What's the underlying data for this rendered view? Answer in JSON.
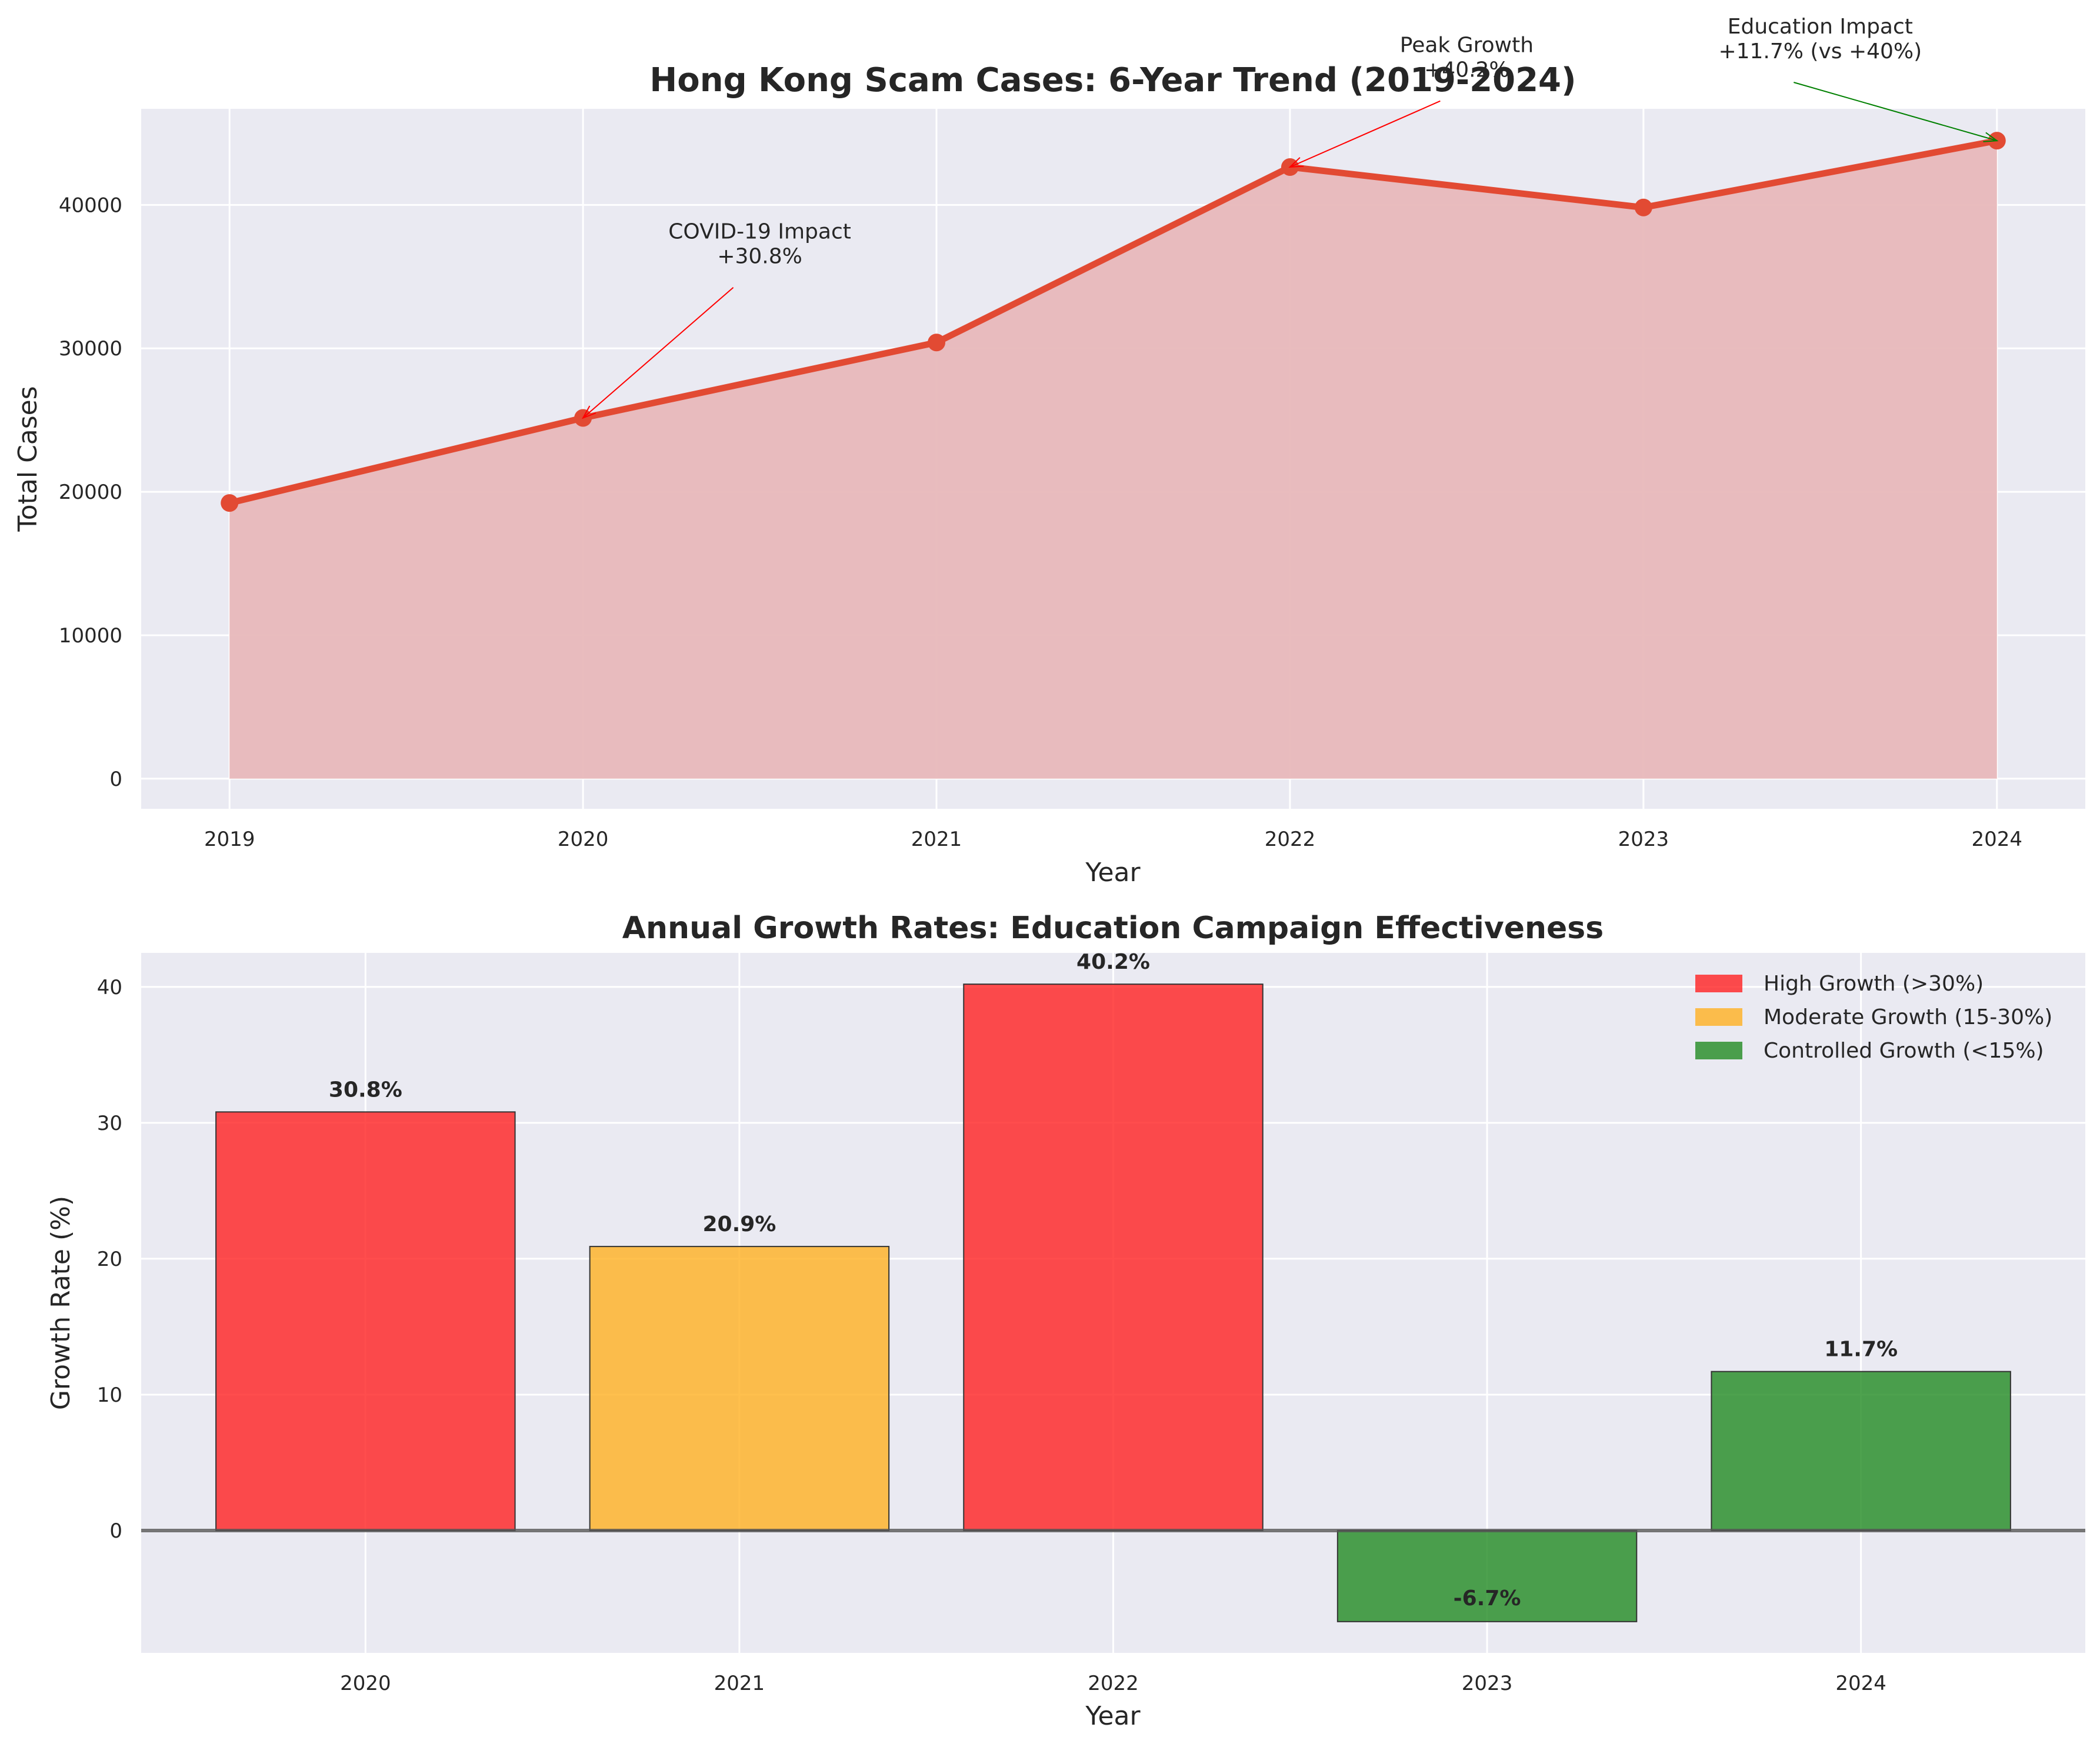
{
  "chart_data": [
    {
      "type": "area",
      "title": "Hong Kong Scam Cases: 6-Year Trend (2019-2024)",
      "xlabel": "Year",
      "ylabel": "Total Cases",
      "x": [
        2019,
        2020,
        2021,
        2022,
        2023,
        2024
      ],
      "x_labels": [
        "2019",
        "2020",
        "2021",
        "2022",
        "2023",
        "2024"
      ],
      "values": [
        19220,
        25150,
        30410,
        42640,
        39820,
        44480
      ],
      "ylim": [
        -2100,
        46700
      ],
      "yticks": [
        0,
        10000,
        20000,
        30000,
        40000
      ],
      "ytick_labels": [
        "0",
        "10000",
        "20000",
        "30000",
        "40000"
      ],
      "grid": true,
      "line_color": "#e24a33",
      "fill_color": "#e8b8bb",
      "annotations": [
        {
          "lines": [
            "COVID-19 Impact",
            "+30.8%"
          ],
          "x": 2020,
          "y": 25150,
          "text_x": 2020.5,
          "text_y": 36500,
          "color": "#ff0000"
        },
        {
          "lines": [
            "Peak Growth",
            "+40.2%"
          ],
          "x": 2022,
          "y": 42640,
          "text_x": 2022.5,
          "text_y": 49500,
          "color": "#ff0000"
        },
        {
          "lines": [
            "Education Impact",
            "+11.7% (vs +40%)"
          ],
          "x": 2024,
          "y": 44480,
          "text_x": 2023.5,
          "text_y": 50800,
          "color": "#008000"
        }
      ]
    },
    {
      "type": "bar",
      "title": "Annual Growth Rates: Education Campaign Effectiveness",
      "xlabel": "Year",
      "ylabel": "Growth Rate (%)",
      "categories": [
        "2020",
        "2021",
        "2022",
        "2023",
        "2024"
      ],
      "values": [
        30.8,
        20.9,
        40.2,
        -6.7,
        11.7
      ],
      "value_labels": [
        "30.8%",
        "20.9%",
        "40.2%",
        "-6.7%",
        "11.7%"
      ],
      "bar_groups": [
        "high",
        "moderate",
        "high",
        "controlled",
        "controlled"
      ],
      "ylim": [
        -9.0,
        42.5
      ],
      "yticks": [
        0,
        10,
        20,
        30,
        40
      ],
      "ytick_labels": [
        "0",
        "10",
        "20",
        "30",
        "40"
      ],
      "grid": true,
      "legend_position": "top-right",
      "legend": [
        {
          "key": "high",
          "label": "High Growth (>30%)",
          "color": "#ff2020"
        },
        {
          "key": "moderate",
          "label": "Moderate Growth (15-30%)",
          "color": "#ffb020"
        },
        {
          "key": "controlled",
          "label": "Controlled Growth (<15%)",
          "color": "#228b22"
        }
      ]
    }
  ]
}
